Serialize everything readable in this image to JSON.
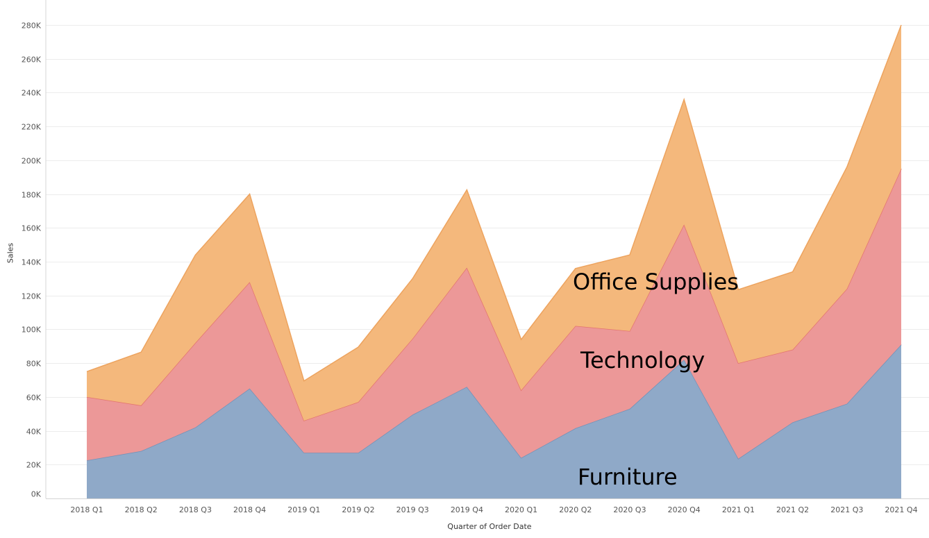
{
  "chart_data": {
    "type": "area",
    "stacked": true,
    "title": "",
    "xlabel": "Quarter of Order Date",
    "ylabel": "Sales",
    "ylim": [
      0,
      280000
    ],
    "yticks": [
      0,
      20000,
      40000,
      60000,
      80000,
      100000,
      120000,
      140000,
      160000,
      180000,
      200000,
      220000,
      240000,
      260000,
      280000
    ],
    "ytick_labels": [
      "0K",
      "20K",
      "40K",
      "60K",
      "80K",
      "100K",
      "120K",
      "140K",
      "160K",
      "180K",
      "200K",
      "220K",
      "240K",
      "260K",
      "280K"
    ],
    "grid": true,
    "legend": "none",
    "categories": [
      "2018 Q1",
      "2018 Q2",
      "2018 Q3",
      "2018 Q4",
      "2019 Q1",
      "2019 Q2",
      "2019 Q3",
      "2019 Q4",
      "2020 Q1",
      "2020 Q2",
      "2020 Q3",
      "2020 Q4",
      "2021 Q1",
      "2021 Q2",
      "2021 Q3",
      "2021 Q4"
    ],
    "series": [
      {
        "name": "Furniture",
        "color": "#8fa9c8",
        "line_color": "#7191b8",
        "values": [
          22500,
          28000,
          42000,
          65000,
          27000,
          27000,
          49500,
          66000,
          24000,
          41500,
          53000,
          82000,
          23500,
          45000,
          56000,
          91000
        ]
      },
      {
        "name": "Technology",
        "color": "#ec9898",
        "line_color": "#e3746e",
        "values": [
          37500,
          27000,
          50000,
          63000,
          19000,
          30000,
          45000,
          70500,
          40000,
          60500,
          46000,
          80000,
          56500,
          43000,
          68000,
          104000
        ]
      },
      {
        "name": "Office Supplies",
        "color": "#f4b87c",
        "line_color": "#eda35e",
        "values": [
          15000,
          31500,
          52000,
          52000,
          23500,
          32500,
          35500,
          46000,
          30000,
          34000,
          45000,
          74000,
          43500,
          46000,
          72000,
          85000
        ]
      }
    ]
  }
}
